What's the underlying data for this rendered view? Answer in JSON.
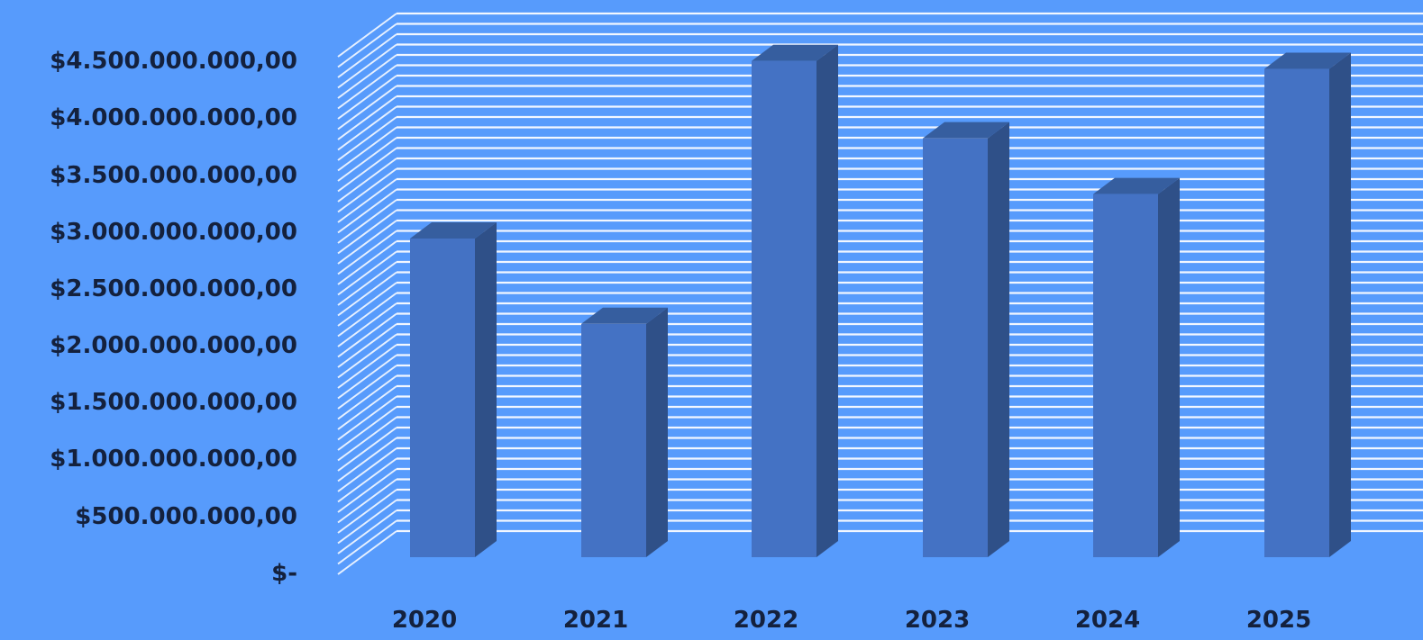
{
  "chart_data": {
    "type": "bar",
    "style": "3d-column",
    "title": "",
    "xlabel": "",
    "ylabel": "",
    "categories": [
      "2020",
      "2021",
      "2022",
      "2023",
      "2024",
      "2025"
    ],
    "series": [
      {
        "values": [
          2800000000,
          2050000000,
          4360000000,
          3680000000,
          3190000000,
          4290000000
        ]
      }
    ],
    "ylim": [
      0,
      4500000000
    ],
    "yticks": [
      0,
      500000000,
      1000000000,
      1500000000,
      2000000000,
      2500000000,
      3000000000,
      3500000000,
      4000000000,
      4500000000
    ],
    "ytick_labels": [
      "$-",
      "$500.000.000,00",
      "$1.000.000.000,00",
      "$1.500.000.000,00",
      "$2.000.000.000,00",
      "$2.500.000.000,00",
      "$3.000.000.000,00",
      "$3.500.000.000,00",
      "$4.000.000.000,00",
      "$4.500.000.000,00"
    ],
    "grid": true,
    "legend": "none",
    "colors": {
      "background": "#579bfc",
      "gridline": "#ffffff",
      "bar_front": "#4472c4",
      "bar_side": "#2f5088",
      "bar_top": "#365e9f",
      "label": "#14213d"
    }
  }
}
